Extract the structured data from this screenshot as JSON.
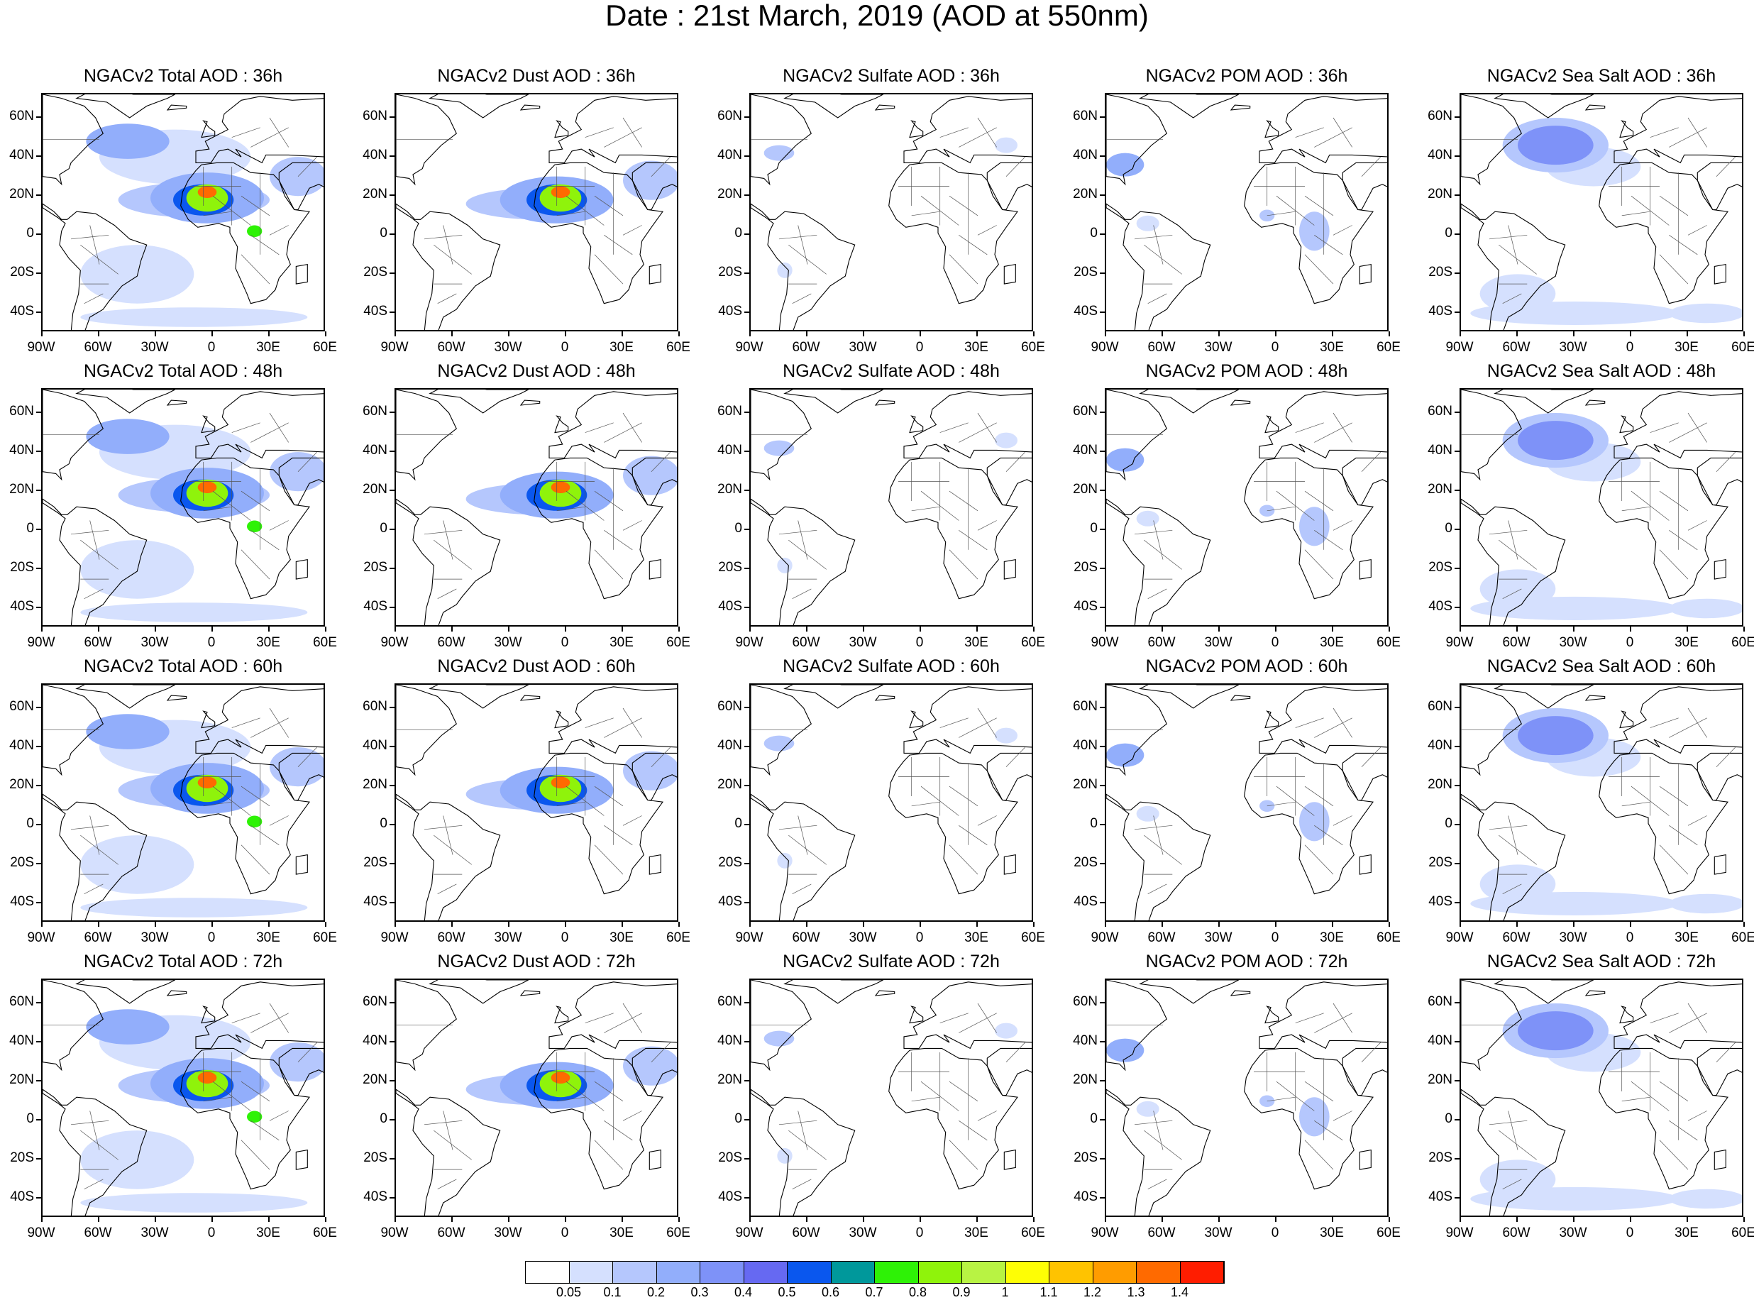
{
  "title": "Date : 21st March, 2019 (AOD at 550nm)",
  "lat_labels": [
    "60N",
    "40N",
    "20N",
    "0",
    "20S",
    "40S"
  ],
  "lat_values": [
    60,
    40,
    20,
    0,
    -20,
    -40
  ],
  "lon_labels": [
    "90W",
    "60W",
    "30W",
    "0",
    "30E",
    "60E"
  ],
  "lon_values": [
    -90,
    -60,
    -30,
    0,
    30,
    60
  ],
  "map_extent": {
    "lon": [
      -90,
      60
    ],
    "lat": [
      -50,
      72
    ]
  },
  "colorbar": {
    "colors": [
      "#ffffff",
      "#d5e0fe",
      "#b5c7fd",
      "#92aefb",
      "#7e92f8",
      "#6669f2",
      "#0a57ee",
      "#00989b",
      "#2ef206",
      "#8ff30b",
      "#b8f343",
      "#fefe05",
      "#ffc300",
      "#ff9c00",
      "#ff6a00",
      "#ff1d00"
    ],
    "labels": [
      "0.05",
      "0.1",
      "0.2",
      "0.3",
      "0.4",
      "0.5",
      "0.6",
      "0.7",
      "0.8",
      "0.9",
      "1",
      "1.1",
      "1.2",
      "1.3",
      "1.4"
    ]
  },
  "panels": [
    {
      "title": "NGACv2 Total AOD : 36h",
      "species": "total",
      "hour": 36
    },
    {
      "title": "NGACv2 Dust AOD : 36h",
      "species": "dust",
      "hour": 36
    },
    {
      "title": "NGACv2 Sulfate AOD : 36h",
      "species": "sulfate",
      "hour": 36
    },
    {
      "title": "NGACv2 POM AOD : 36h",
      "species": "pom",
      "hour": 36
    },
    {
      "title": "NGACv2 Sea Salt AOD : 36h",
      "species": "seasalt",
      "hour": 36
    },
    {
      "title": "NGACv2 Total AOD : 48h",
      "species": "total",
      "hour": 48
    },
    {
      "title": "NGACv2 Dust AOD : 48h",
      "species": "dust",
      "hour": 48
    },
    {
      "title": "NGACv2 Sulfate AOD : 48h",
      "species": "sulfate",
      "hour": 48
    },
    {
      "title": "NGACv2 POM AOD : 48h",
      "species": "pom",
      "hour": 48
    },
    {
      "title": "NGACv2 Sea Salt AOD : 48h",
      "species": "seasalt",
      "hour": 48
    },
    {
      "title": "NGACv2 Total AOD : 60h",
      "species": "total",
      "hour": 60
    },
    {
      "title": "NGACv2 Dust AOD : 60h",
      "species": "dust",
      "hour": 60
    },
    {
      "title": "NGACv2 Sulfate AOD : 60h",
      "species": "sulfate",
      "hour": 60
    },
    {
      "title": "NGACv2 POM AOD : 60h",
      "species": "pom",
      "hour": 60
    },
    {
      "title": "NGACv2 Sea Salt AOD : 60h",
      "species": "seasalt",
      "hour": 60
    },
    {
      "title": "NGACv2 Total AOD : 72h",
      "species": "total",
      "hour": 72
    },
    {
      "title": "NGACv2 Dust AOD : 72h",
      "species": "dust",
      "hour": 72
    },
    {
      "title": "NGACv2 Sulfate AOD : 72h",
      "species": "sulfate",
      "hour": 72
    },
    {
      "title": "NGACv2 POM AOD : 72h",
      "species": "pom",
      "hour": 72
    },
    {
      "title": "NGACv2 Sea Salt  AOD : 72h",
      "species": "seasalt",
      "hour": 72
    }
  ]
}
